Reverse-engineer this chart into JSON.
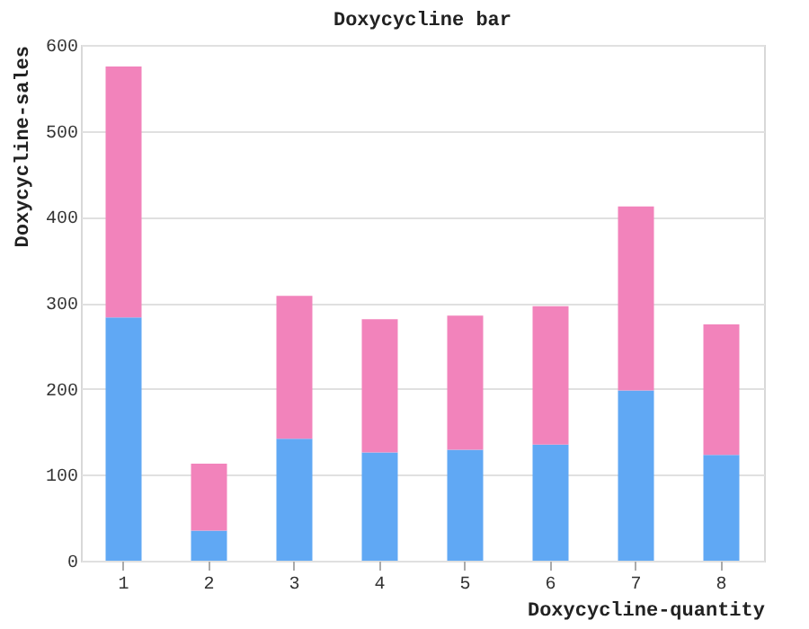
{
  "chart_data": {
    "type": "bar",
    "title": "Doxycycline bar",
    "xlabel": "Doxycycline-quantity",
    "ylabel": "Doxycycline-sales",
    "categories": [
      "1",
      "2",
      "3",
      "4",
      "5",
      "6",
      "7",
      "8"
    ],
    "stacked": true,
    "series": [
      {
        "color": "#60a8f4",
        "values": [
          283,
          35,
          142,
          126,
          129,
          135,
          198,
          123
        ]
      },
      {
        "color": "#f283bb",
        "values": [
          292,
          78,
          166,
          155,
          156,
          161,
          214,
          152
        ]
      }
    ],
    "ylim": [
      0,
      600
    ],
    "yticks": [
      0,
      100,
      200,
      300,
      400,
      500,
      600
    ],
    "grid": "y",
    "legend": false
  }
}
